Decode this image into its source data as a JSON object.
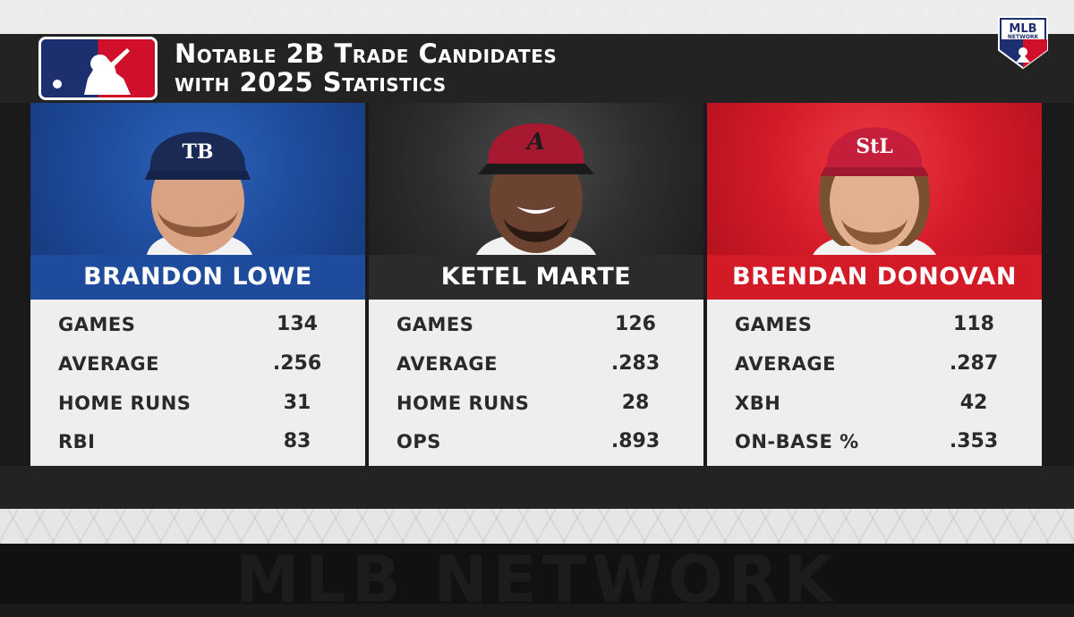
{
  "title": {
    "line1": "Notable 2B Trade Candidates",
    "line2": "with 2025 Statistics"
  },
  "network_badge": {
    "line1": "MLB",
    "line2": "NETWORK"
  },
  "footer": {
    "watermark": "MLB NETWORK"
  },
  "colors": {
    "rays": "#1e4b9b",
    "diamondbacks": "#2b2b2b",
    "cardinals": "#d31b28"
  },
  "players": [
    {
      "name": "BRANDON LOWE",
      "cap_logo": "TB",
      "stats": [
        {
          "label": "GAMES",
          "value": "134"
        },
        {
          "label": "AVERAGE",
          "value": ".256"
        },
        {
          "label": "HOME RUNS",
          "value": "31"
        },
        {
          "label": "RBI",
          "value": "83"
        }
      ]
    },
    {
      "name": "KETEL MARTE",
      "cap_logo": "A",
      "stats": [
        {
          "label": "GAMES",
          "value": "126"
        },
        {
          "label": "AVERAGE",
          "value": ".283"
        },
        {
          "label": "HOME RUNS",
          "value": "28"
        },
        {
          "label": "OPS",
          "value": ".893"
        }
      ]
    },
    {
      "name": "BRENDAN DONOVAN",
      "cap_logo": "StL",
      "stats": [
        {
          "label": "GAMES",
          "value": "118"
        },
        {
          "label": "AVERAGE",
          "value": ".287"
        },
        {
          "label": "XBH",
          "value": "42"
        },
        {
          "label": "ON-BASE %",
          "value": ".353"
        }
      ]
    }
  ]
}
